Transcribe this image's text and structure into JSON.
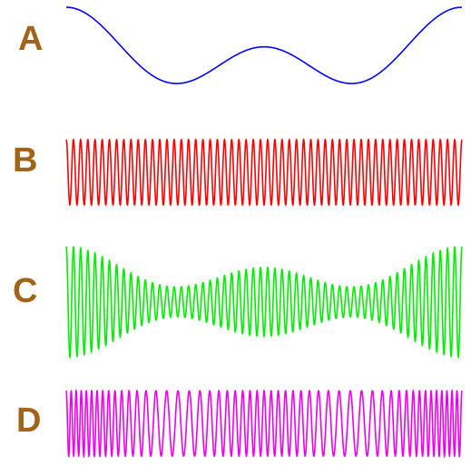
{
  "rows": [
    {
      "label": "A",
      "role": "modulating-signal",
      "color": "#0000ff"
    },
    {
      "label": "B",
      "role": "carrier",
      "color": "#ff0000"
    },
    {
      "label": "C",
      "role": "amplitude-modulated",
      "color": "#00ee00"
    },
    {
      "label": "D",
      "role": "frequency-modulated",
      "color": "#ee00ee"
    }
  ],
  "label_color": "#a0651a"
}
